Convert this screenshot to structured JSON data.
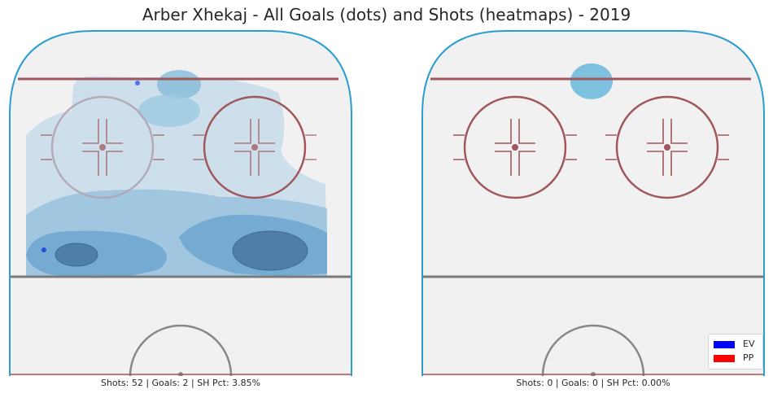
{
  "title": "Arber Xhekaj - All Goals (dots) and Shots (heatmaps) - 2019",
  "chart_data": [
    {
      "type": "heatmap",
      "panel": "left",
      "caption": "Shots: 52 | Goals: 2 | SH Pct: 3.85%",
      "shots": 52,
      "goals": 2,
      "sh_pct": 3.85,
      "goal_dots": [
        {
          "strength": "EV",
          "x": 0.41,
          "y": 0.07
        },
        {
          "strength": "EV",
          "x": 0.1,
          "y": 0.64
        }
      ],
      "heatmap_intensity": "medium"
    },
    {
      "type": "heatmap",
      "panel": "right",
      "caption": "Shots: 0 | Goals: 0 | SH Pct: 0.00%",
      "shots": 0,
      "goals": 0,
      "sh_pct": 0.0,
      "goal_dots": [],
      "heatmap_intensity": "low"
    }
  ],
  "legend": {
    "placement": "lower-right",
    "items": [
      {
        "label": "EV",
        "color": "#0000ff"
      },
      {
        "label": "PP",
        "color": "#ff0000"
      }
    ]
  },
  "colors": {
    "boards": "#2b9ed0",
    "goal_line": "#a0575b",
    "faceoff": "#a0575b",
    "blue_line": "#7a7a7a",
    "ice": "#f1f1f1",
    "heat_light": "#9ecae1",
    "heat_dark": "#2a6aa5",
    "goal_dot": "#1f4fe0"
  }
}
